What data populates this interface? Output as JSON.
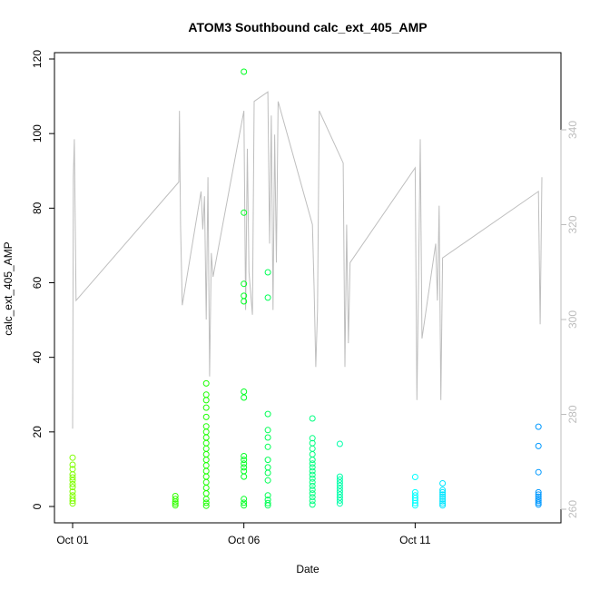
{
  "chart_data": {
    "type": "scatter",
    "title": "ATOM3 Southbound calc_ext_405_AMP",
    "xlabel": "Date",
    "ylabel": "calc_ext_405_AMP",
    "x_ticks": [
      "Oct 01",
      "Oct 06",
      "Oct 11"
    ],
    "x_tick_values": [
      0,
      5,
      10
    ],
    "xlim": [
      0,
      13.7
    ],
    "ylim": [
      0,
      120
    ],
    "y_ticks": [
      0,
      20,
      40,
      60,
      80,
      100,
      120
    ],
    "y2lim": [
      260,
      350
    ],
    "y2_ticks": [
      260,
      280,
      300,
      320,
      340
    ],
    "grid": false,
    "legend": "none",
    "colors": {
      "secondary_line": "#bebebe",
      "bursts": [
        "#7fff00",
        "#33ff00",
        "#1aff00",
        "#00ff22",
        "#00ff55",
        "#00ff80",
        "#00ffaa",
        "#00ffff",
        "#00e5ff",
        "#0099ff"
      ]
    },
    "series": [
      {
        "axis": "left",
        "points": [
          [
            0.0,
            0.8
          ],
          [
            0.0,
            1.5
          ],
          [
            0.0,
            2.2
          ],
          [
            0.0,
            3.0
          ],
          [
            0.0,
            4.0
          ],
          [
            0.0,
            5.2
          ],
          [
            0.0,
            6.0
          ],
          [
            0.0,
            7.0
          ],
          [
            0.0,
            7.8
          ],
          [
            0.0,
            8.6
          ],
          [
            0.0,
            10.0
          ],
          [
            0.0,
            11.2
          ],
          [
            0.0,
            13.1
          ],
          [
            3.0,
            0.3
          ],
          [
            3.0,
            0.8
          ],
          [
            3.0,
            1.3
          ],
          [
            3.0,
            2.0
          ],
          [
            3.0,
            2.8
          ],
          [
            3.9,
            0.2
          ],
          [
            3.9,
            1.0
          ],
          [
            3.9,
            2.0
          ],
          [
            3.9,
            3.5
          ],
          [
            3.9,
            5.0
          ],
          [
            3.9,
            6.5
          ],
          [
            3.9,
            8.0
          ],
          [
            3.9,
            9.5
          ],
          [
            3.9,
            11.0
          ],
          [
            3.9,
            12.5
          ],
          [
            3.9,
            14.0
          ],
          [
            3.9,
            15.5
          ],
          [
            3.9,
            17.0
          ],
          [
            3.9,
            18.5
          ],
          [
            3.9,
            20.0
          ],
          [
            3.9,
            21.5
          ],
          [
            3.9,
            24.0
          ],
          [
            3.9,
            26.5
          ],
          [
            3.9,
            28.5
          ],
          [
            3.9,
            30.0
          ],
          [
            3.9,
            33.0
          ],
          [
            5.0,
            0.3
          ],
          [
            5.0,
            1.0
          ],
          [
            5.0,
            2.0
          ],
          [
            5.0,
            8.0
          ],
          [
            5.0,
            9.5
          ],
          [
            5.0,
            10.5
          ],
          [
            5.0,
            11.5
          ],
          [
            5.0,
            12.5
          ],
          [
            5.0,
            13.5
          ],
          [
            5.0,
            29.2
          ],
          [
            5.0,
            30.8
          ],
          [
            5.0,
            55.0
          ],
          [
            5.0,
            56.5
          ],
          [
            5.0,
            59.7
          ],
          [
            5.0,
            78.8
          ],
          [
            5.0,
            116.6
          ],
          [
            5.7,
            0.3
          ],
          [
            5.7,
            0.9
          ],
          [
            5.7,
            1.8
          ],
          [
            5.7,
            3.0
          ],
          [
            5.7,
            7.0
          ],
          [
            5.7,
            9.0
          ],
          [
            5.7,
            10.5
          ],
          [
            5.7,
            12.5
          ],
          [
            5.7,
            16.0
          ],
          [
            5.7,
            18.5
          ],
          [
            5.7,
            20.5
          ],
          [
            5.7,
            24.8
          ],
          [
            5.7,
            56.0
          ],
          [
            5.7,
            62.8
          ],
          [
            7.0,
            0.5
          ],
          [
            7.0,
            1.5
          ],
          [
            7.0,
            2.5
          ],
          [
            7.0,
            3.5
          ],
          [
            7.0,
            4.5
          ],
          [
            7.0,
            5.5
          ],
          [
            7.0,
            6.5
          ],
          [
            7.0,
            7.5
          ],
          [
            7.0,
            8.5
          ],
          [
            7.0,
            9.5
          ],
          [
            7.0,
            10.5
          ],
          [
            7.0,
            11.5
          ],
          [
            7.0,
            12.5
          ],
          [
            7.0,
            14.0
          ],
          [
            7.0,
            15.5
          ],
          [
            7.0,
            17.0
          ],
          [
            7.0,
            18.3
          ],
          [
            7.0,
            23.6
          ],
          [
            7.8,
            0.8
          ],
          [
            7.8,
            1.6
          ],
          [
            7.8,
            2.4
          ],
          [
            7.8,
            3.2
          ],
          [
            7.8,
            4.0
          ],
          [
            7.8,
            4.8
          ],
          [
            7.8,
            5.6
          ],
          [
            7.8,
            6.4
          ],
          [
            7.8,
            7.2
          ],
          [
            7.8,
            8.0
          ],
          [
            7.8,
            16.8
          ],
          [
            10.0,
            0.3
          ],
          [
            10.0,
            0.9
          ],
          [
            10.0,
            1.6
          ],
          [
            10.0,
            2.3
          ],
          [
            10.0,
            3.0
          ],
          [
            10.0,
            3.8
          ],
          [
            10.0,
            7.9
          ],
          [
            10.8,
            0.3
          ],
          [
            10.8,
            0.8
          ],
          [
            10.8,
            1.4
          ],
          [
            10.8,
            2.0
          ],
          [
            10.8,
            2.6
          ],
          [
            10.8,
            3.2
          ],
          [
            10.8,
            3.8
          ],
          [
            10.8,
            4.4
          ],
          [
            10.8,
            6.2
          ],
          [
            13.6,
            0.5
          ],
          [
            13.6,
            1.0
          ],
          [
            13.6,
            1.5
          ],
          [
            13.6,
            2.0
          ],
          [
            13.6,
            2.6
          ],
          [
            13.6,
            3.2
          ],
          [
            13.6,
            3.8
          ],
          [
            13.6,
            9.2
          ],
          [
            13.6,
            16.2
          ],
          [
            13.6,
            21.4
          ]
        ]
      },
      {
        "axis": "right",
        "line": [
          [
            0.0,
            277
          ],
          [
            0.02,
            330
          ],
          [
            0.05,
            338
          ],
          [
            0.1,
            304
          ],
          [
            3.1,
            329
          ],
          [
            3.12,
            344
          ],
          [
            3.15,
            320
          ],
          [
            3.2,
            303
          ],
          [
            3.75,
            327
          ],
          [
            3.8,
            319
          ],
          [
            3.85,
            326
          ],
          [
            3.9,
            300
          ],
          [
            3.95,
            330
          ],
          [
            4.0,
            288
          ],
          [
            4.05,
            314
          ],
          [
            4.1,
            309
          ],
          [
            5.0,
            344
          ],
          [
            5.05,
            302
          ],
          [
            5.1,
            336
          ],
          [
            5.15,
            310
          ],
          [
            5.25,
            301
          ],
          [
            5.3,
            346
          ],
          [
            5.7,
            348
          ],
          [
            5.75,
            316
          ],
          [
            5.8,
            343
          ],
          [
            5.85,
            302
          ],
          [
            5.9,
            339
          ],
          [
            5.95,
            312
          ],
          [
            6.0,
            346
          ],
          [
            7.0,
            320
          ],
          [
            7.05,
            307
          ],
          [
            7.1,
            290
          ],
          [
            7.15,
            302
          ],
          [
            7.2,
            344
          ],
          [
            7.9,
            333
          ],
          [
            7.95,
            290
          ],
          [
            8.0,
            320
          ],
          [
            8.05,
            295
          ],
          [
            8.1,
            312
          ],
          [
            10.0,
            332
          ],
          [
            10.05,
            283
          ],
          [
            10.1,
            308
          ],
          [
            10.15,
            338
          ],
          [
            10.2,
            296
          ],
          [
            10.6,
            316
          ],
          [
            10.65,
            304
          ],
          [
            10.7,
            324
          ],
          [
            10.75,
            283
          ],
          [
            10.8,
            313
          ],
          [
            13.6,
            327
          ],
          [
            13.65,
            299
          ],
          [
            13.7,
            330
          ]
        ]
      }
    ]
  }
}
